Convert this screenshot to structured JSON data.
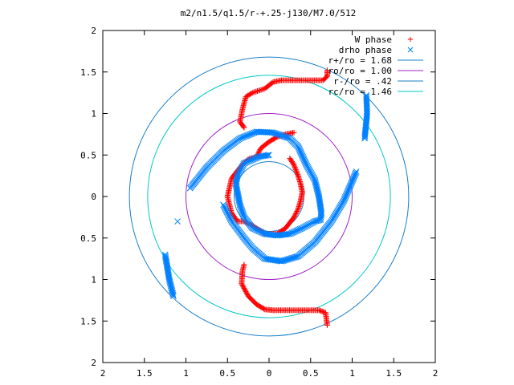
{
  "chart_data": {
    "type": "scatter",
    "title": "m2/n1.5/q1.5/r-+.25-j130/M7.0/512",
    "xlim": [
      2,
      -2
    ],
    "ylim": [
      -2,
      2
    ],
    "x_ticks": [
      2,
      1.5,
      1,
      0.5,
      0,
      0.5,
      1,
      1.5,
      2
    ],
    "y_ticks": [
      2,
      1.5,
      1,
      0.5,
      0,
      0.5,
      1,
      1.5,
      2
    ],
    "legend_position": "top-right",
    "series": [
      {
        "name": "W phase",
        "kind": "points",
        "marker": "+",
        "color": "#ff0000",
        "points": [
          [
            0.7,
            -1.55
          ],
          [
            0.68,
            -1.4
          ],
          [
            0.6,
            -1.37
          ],
          [
            0.4,
            -1.37
          ],
          [
            0.2,
            -1.37
          ],
          [
            0.05,
            -1.37
          ],
          [
            -0.05,
            -1.36
          ],
          [
            -0.15,
            -1.3
          ],
          [
            -0.25,
            -1.2
          ],
          [
            -0.33,
            -1.05
          ],
          [
            -0.32,
            -0.9
          ],
          [
            -0.3,
            -0.82
          ],
          [
            0.7,
            1.52
          ],
          [
            0.7,
            1.45
          ],
          [
            0.65,
            1.4
          ],
          [
            0.5,
            1.4
          ],
          [
            0.3,
            1.4
          ],
          [
            0.15,
            1.4
          ],
          [
            0.05,
            1.38
          ],
          [
            -0.05,
            1.3
          ],
          [
            -0.2,
            1.25
          ],
          [
            -0.28,
            1.2
          ],
          [
            -0.32,
            1.05
          ],
          [
            -0.35,
            0.9
          ],
          [
            -0.3,
            0.83
          ],
          [
            0.3,
            0.77
          ],
          [
            0.2,
            0.75
          ],
          [
            0.1,
            0.72
          ],
          [
            0.0,
            0.66
          ],
          [
            -0.1,
            0.58
          ],
          [
            -0.15,
            0.48
          ],
          [
            -0.25,
            0.45
          ],
          [
            -0.35,
            0.35
          ],
          [
            -0.45,
            0.22
          ],
          [
            -0.5,
            0.0
          ],
          [
            -0.45,
            -0.2
          ],
          [
            -0.38,
            -0.3
          ],
          [
            -0.3,
            -0.3
          ],
          [
            -0.2,
            -0.35
          ],
          [
            -0.05,
            -0.45
          ],
          [
            0.1,
            -0.45
          ],
          [
            0.2,
            -0.38
          ],
          [
            0.3,
            -0.25
          ],
          [
            0.35,
            -0.15
          ],
          [
            0.38,
            -0.05
          ],
          [
            0.4,
            0.05
          ],
          [
            0.38,
            0.15
          ],
          [
            0.35,
            0.25
          ],
          [
            0.3,
            0.38
          ],
          [
            0.25,
            0.46
          ]
        ]
      },
      {
        "name": "drho phase",
        "kind": "points",
        "marker": "x",
        "color": "#0080ff",
        "points": [
          [
            1.17,
            1.22
          ],
          [
            1.18,
            1.0
          ],
          [
            1.15,
            0.7
          ],
          [
            1.05,
            0.3
          ],
          [
            0.9,
            -0.05
          ],
          [
            0.75,
            -0.3
          ],
          [
            0.55,
            -0.55
          ],
          [
            0.35,
            -0.72
          ],
          [
            0.15,
            -0.78
          ],
          [
            -0.05,
            -0.75
          ],
          [
            -0.2,
            -0.62
          ],
          [
            -0.3,
            -0.5
          ],
          [
            -0.45,
            -0.3
          ],
          [
            -0.55,
            -0.1
          ],
          [
            -1.15,
            -1.2
          ],
          [
            -1.2,
            -1.0
          ],
          [
            -1.25,
            -0.7
          ],
          [
            -1.1,
            -0.3
          ],
          [
            -0.95,
            0.1
          ],
          [
            -0.75,
            0.35
          ],
          [
            -0.55,
            0.55
          ],
          [
            -0.35,
            0.7
          ],
          [
            -0.15,
            0.78
          ],
          [
            0.05,
            0.77
          ],
          [
            0.25,
            0.7
          ],
          [
            0.35,
            0.6
          ],
          [
            0.45,
            0.38
          ],
          [
            0.55,
            0.2
          ],
          [
            0.6,
            0.0
          ],
          [
            0.63,
            -0.2
          ],
          [
            0.62,
            -0.28
          ],
          [
            0.55,
            -0.3
          ],
          [
            0.4,
            -0.38
          ],
          [
            0.25,
            -0.45
          ],
          [
            0.1,
            -0.47
          ],
          [
            -0.05,
            -0.45
          ],
          [
            -0.2,
            -0.38
          ],
          [
            -0.3,
            -0.25
          ],
          [
            -0.35,
            -0.1
          ],
          [
            -0.38,
            0.05
          ],
          [
            -0.4,
            0.15
          ],
          [
            -0.38,
            0.25
          ],
          [
            -0.3,
            0.4
          ],
          [
            -0.12,
            0.48
          ],
          [
            0.0,
            0.5
          ]
        ]
      },
      {
        "name": "r+/ro = 1.68",
        "kind": "circle",
        "radius": 1.68,
        "color": "#1a7fc8"
      },
      {
        "name": "ro/ro = 1.00",
        "kind": "circle",
        "radius": 1.0,
        "color": "#a020c8"
      },
      {
        "name": "r-/ro = .42",
        "kind": "circle",
        "radius": 0.42,
        "color": "#1a7fc8"
      },
      {
        "name": "rc/ro = 1.46",
        "kind": "circle",
        "radius": 1.46,
        "color": "#00c8c8"
      }
    ]
  }
}
